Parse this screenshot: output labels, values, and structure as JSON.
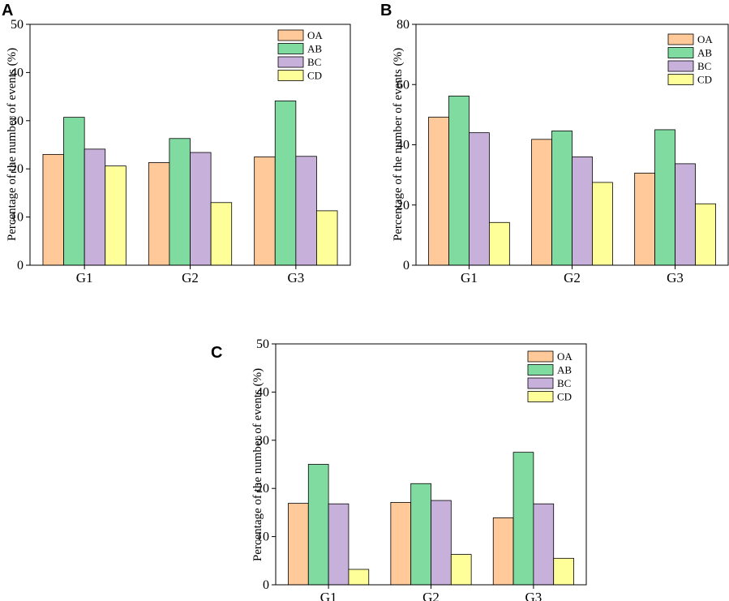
{
  "legend": [
    "OA",
    "AB",
    "BC",
    "CD"
  ],
  "colors": {
    "OA": "#FFC999",
    "AB": "#80DBA0",
    "BC": "#C7B1DB",
    "CD": "#FFFF99",
    "stroke": "#000000"
  },
  "chart_data": [
    {
      "type": "bar",
      "panel": "A",
      "categories": [
        "G1",
        "G2",
        "G3"
      ],
      "series": [
        {
          "name": "OA",
          "values": [
            23.0,
            21.3,
            22.5
          ]
        },
        {
          "name": "AB",
          "values": [
            30.7,
            26.3,
            34.1
          ]
        },
        {
          "name": "BC",
          "values": [
            24.1,
            23.4,
            22.6
          ]
        },
        {
          "name": "CD",
          "values": [
            20.6,
            13.0,
            11.3
          ]
        }
      ],
      "ylabel": "Percentage of the number of events (%)",
      "xlabel": "",
      "ylim": [
        0,
        50
      ],
      "yticks": [
        0,
        10,
        20,
        30,
        40,
        50
      ],
      "legend_position": "top-right"
    },
    {
      "type": "bar",
      "panel": "B",
      "categories": [
        "G1",
        "G2",
        "G3"
      ],
      "series": [
        {
          "name": "OA",
          "values": [
            49.2,
            41.8,
            30.6
          ]
        },
        {
          "name": "AB",
          "values": [
            56.2,
            44.6,
            45.0
          ]
        },
        {
          "name": "BC",
          "values": [
            44.0,
            36.0,
            33.7
          ]
        },
        {
          "name": "CD",
          "values": [
            14.2,
            27.5,
            20.4
          ]
        }
      ],
      "ylabel": "Percentage of the number of events (%)",
      "xlabel": "",
      "ylim": [
        0,
        80
      ],
      "yticks": [
        0,
        20,
        40,
        60,
        80
      ],
      "legend_position": "top-right"
    },
    {
      "type": "bar",
      "panel": "C",
      "categories": [
        "G1",
        "G2",
        "G3"
      ],
      "series": [
        {
          "name": "OA",
          "values": [
            16.9,
            17.1,
            13.9
          ]
        },
        {
          "name": "AB",
          "values": [
            25.0,
            21.0,
            27.5
          ]
        },
        {
          "name": "BC",
          "values": [
            16.8,
            17.5,
            16.8
          ]
        },
        {
          "name": "CD",
          "values": [
            3.2,
            6.3,
            5.5
          ]
        }
      ],
      "ylabel": "Percentage of the number of events (%)",
      "xlabel": "",
      "ylim": [
        0,
        50
      ],
      "yticks": [
        0,
        10,
        20,
        30,
        40,
        50
      ],
      "legend_position": "top-right"
    }
  ]
}
